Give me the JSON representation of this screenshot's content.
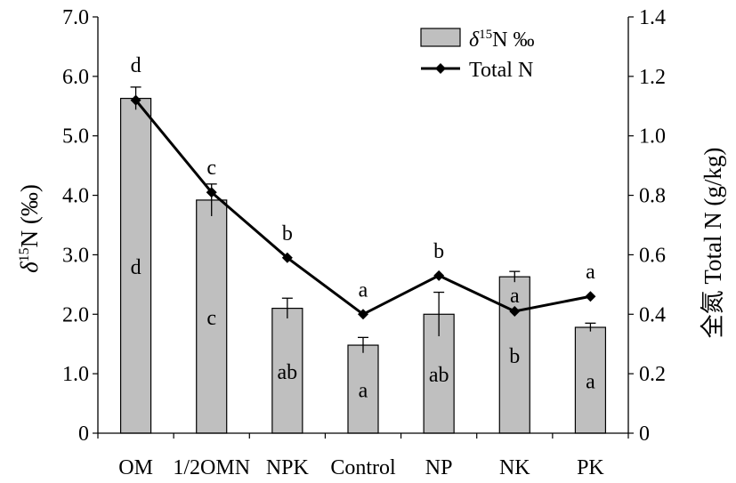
{
  "chart_data": {
    "type": "bar",
    "categories": [
      "OM",
      "1/2OMN",
      "NPK",
      "Control",
      "NP",
      "NK",
      "PK"
    ],
    "series": [
      {
        "name": "δ15N ‰",
        "kind": "bar",
        "axis": "left",
        "values": [
          5.63,
          3.92,
          2.1,
          1.48,
          2.0,
          2.63,
          1.78
        ],
        "errors": [
          0.19,
          0.27,
          0.17,
          0.13,
          0.37,
          0.09,
          0.07
        ],
        "labels": [
          "d",
          "c",
          "ab",
          "a",
          "ab",
          "b",
          "a"
        ],
        "color": "#bfbfbf"
      },
      {
        "name": "Total N",
        "kind": "line",
        "axis": "right",
        "values": [
          1.12,
          0.81,
          0.59,
          0.4,
          0.53,
          0.41,
          0.46
        ],
        "labels": [
          "d",
          "c",
          "b",
          "a",
          "b",
          "a",
          "a"
        ],
        "color": "#000000"
      }
    ],
    "y_left": {
      "label_prefix": "δ",
      "label_sup": "15",
      "label_suffix": "N (‰)",
      "lim": [
        0,
        7
      ],
      "ticks": [
        "0",
        "1.0",
        "2.0",
        "3.0",
        "4.0",
        "5.0",
        "6.0",
        "7.0"
      ]
    },
    "y_right": {
      "label": "全氮 Total N (g/kg)",
      "lim": [
        0,
        1.4
      ],
      "ticks": [
        "0",
        "0.2",
        "0.4",
        "0.6",
        "0.8",
        "1.0",
        "1.2",
        "1.4"
      ]
    },
    "legend": {
      "position": "top-right",
      "entries": [
        {
          "prefix": "δ",
          "sup": "15",
          "suffix": "N ‰"
        },
        {
          "text": "Total N"
        }
      ]
    }
  }
}
